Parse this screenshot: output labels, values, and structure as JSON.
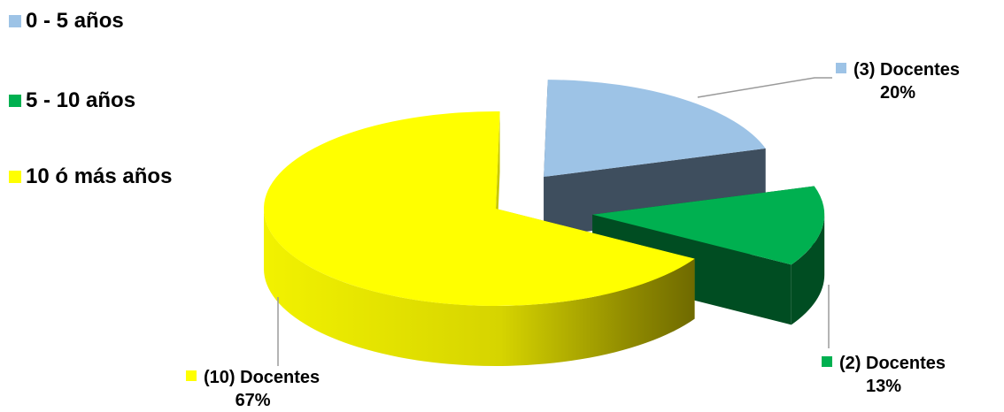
{
  "chart_data": {
    "type": "pie",
    "title": "",
    "legend_position": "top-left",
    "slices": [
      {
        "legend_label": "0 - 5 años",
        "label_count": "(3) Docentes",
        "label_pct": "20%",
        "value": 3,
        "percent": 20,
        "color": "#9DC3E6",
        "side_color": "#3E4E5E",
        "exploded": true
      },
      {
        "legend_label": "5 - 10 años",
        "label_count": "(2) Docentes",
        "label_pct": "13%",
        "value": 2,
        "percent": 13,
        "color": "#00B050",
        "side_color": "#004D22",
        "exploded": true
      },
      {
        "legend_label": "10 ó más años",
        "label_count": "(10) Docentes",
        "label_pct": "67%",
        "value": 10,
        "percent": 67,
        "color": "#FFFF00",
        "side_color": "#C8C800",
        "exploded": false
      }
    ]
  }
}
